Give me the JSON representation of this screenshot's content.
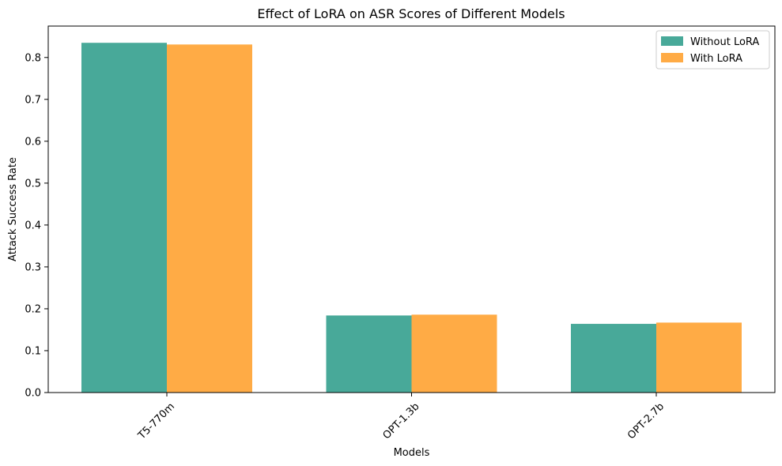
{
  "chart_data": {
    "type": "bar",
    "title": "Effect of LoRA on ASR Scores of Different Models",
    "xlabel": "Models",
    "ylabel": "Attack Success Rate",
    "categories": [
      "T5-770m",
      "OPT-1.3b",
      "OPT-2.7b"
    ],
    "series": [
      {
        "name": "Without LoRA",
        "color": "#48a999",
        "values": [
          0.835,
          0.184,
          0.164
        ]
      },
      {
        "name": "With LoRA",
        "color": "#ffab45",
        "values": [
          0.831,
          0.186,
          0.167
        ]
      }
    ],
    "ylim": [
      0,
      0.875
    ],
    "yticks": [
      0.0,
      0.1,
      0.2,
      0.3,
      0.4,
      0.5,
      0.6,
      0.7,
      0.8
    ],
    "ytick_labels": [
      "0.0",
      "0.1",
      "0.2",
      "0.3",
      "0.4",
      "0.5",
      "0.6",
      "0.7",
      "0.8"
    ],
    "xtick_rotation_deg": 45,
    "grid": false,
    "legend_position": "top-right"
  }
}
